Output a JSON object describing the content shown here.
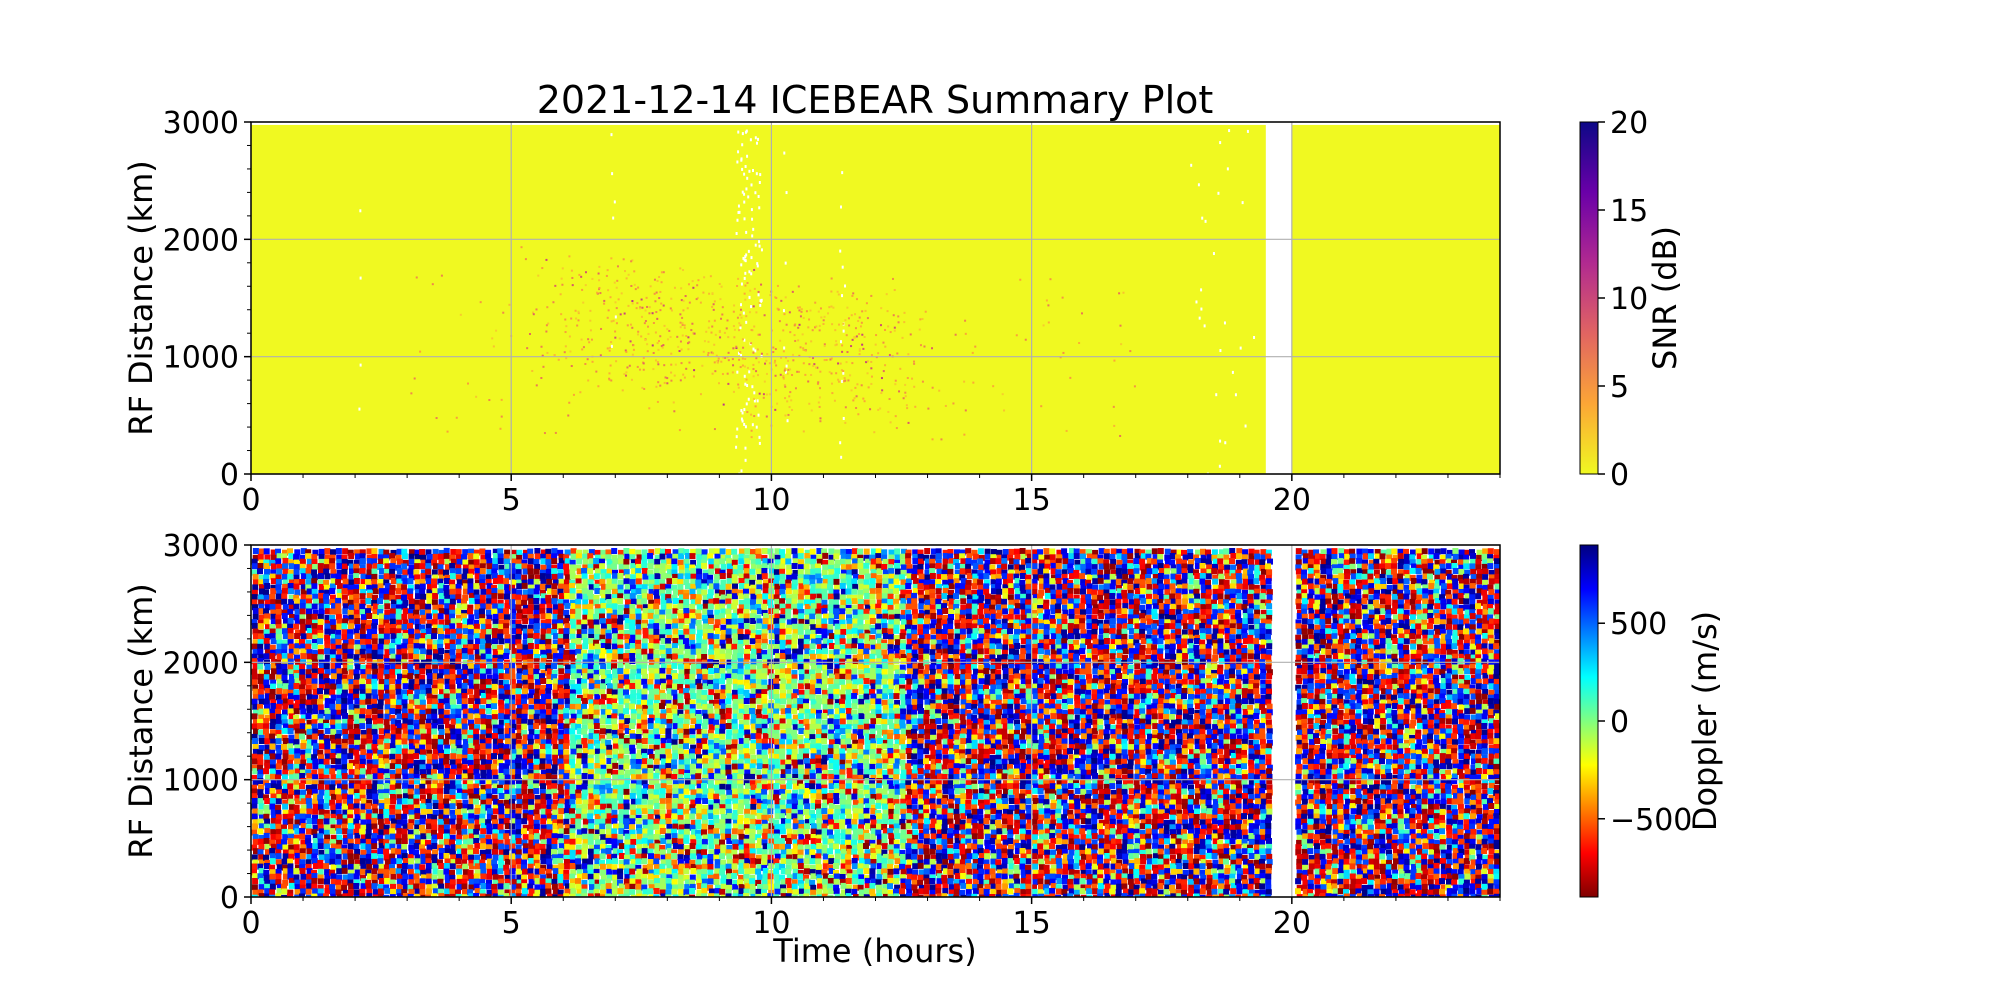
{
  "chart_data": {
    "title": "2021-12-14 ICEBEAR Summary Plot",
    "xlabel": "Time (hours)",
    "panels": [
      {
        "type": "scatter",
        "ylabel": "RF Distance (km)",
        "xlim": [
          0,
          24
        ],
        "ylim": [
          0,
          3000
        ],
        "xticks": [
          0,
          5,
          10,
          15,
          20
        ],
        "yticks": [
          0,
          1000,
          2000,
          3000
        ],
        "grid": true,
        "data_gaps_hours": [
          [
            19.5,
            20.0
          ]
        ],
        "dominant_snr_db": 0,
        "enhanced_snr_region": {
          "x": [
            5.5,
            13.0
          ],
          "y": [
            600,
            1700
          ]
        },
        "colorbar": {
          "label": "SNR (dB)",
          "range": [
            0,
            20
          ],
          "ticks": [
            0,
            5,
            10,
            15,
            20
          ],
          "tick_labels": [
            "0",
            "5",
            "10",
            "15",
            "20"
          ],
          "colormap": "plasma_r",
          "colors": [
            "#f0f921",
            "#fca636",
            "#e16462",
            "#b12a90",
            "#6a00a8",
            "#0d0887"
          ]
        }
      },
      {
        "type": "scatter",
        "ylabel": "RF Distance (km)",
        "xlim": [
          0,
          24
        ],
        "ylim": [
          0,
          3000
        ],
        "xticks": [
          0,
          5,
          10,
          15,
          20
        ],
        "yticks": [
          0,
          1000,
          2000,
          3000
        ],
        "grid": true,
        "data_gaps_hours": [
          [
            19.5,
            20.0
          ]
        ],
        "doppler_distribution": "random noise",
        "colorbar": {
          "label": "Doppler (m/s)",
          "range": [
            -900,
            900
          ],
          "ticks": [
            -500,
            0,
            500
          ],
          "tick_labels": [
            "−500",
            "0",
            "500"
          ],
          "colormap": "jet_r",
          "colors": [
            "#800000",
            "#ff0000",
            "#ff8000",
            "#ffff00",
            "#80ff80",
            "#00ffff",
            "#0080ff",
            "#0000ff",
            "#000080"
          ]
        }
      }
    ]
  }
}
